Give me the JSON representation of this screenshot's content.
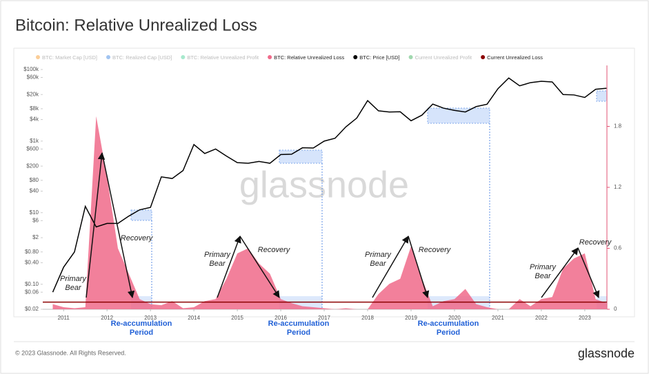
{
  "chart_data": {
    "type": "line",
    "title": "Bitcoin: Relative Unrealized Loss",
    "watermark": "glassnode",
    "copyright": "© 2023 Glassnode. All Rights Reserved.",
    "logo": "glassnode",
    "x": [
      2010.75,
      2011,
      2011.25,
      2011.5,
      2011.75,
      2012,
      2012.25,
      2012.5,
      2012.75,
      2013,
      2013.25,
      2013.5,
      2013.75,
      2014,
      2014.25,
      2014.5,
      2014.75,
      2015,
      2015.25,
      2015.5,
      2015.75,
      2016,
      2016.25,
      2016.5,
      2016.75,
      2017,
      2017.25,
      2017.5,
      2017.75,
      2018,
      2018.25,
      2018.5,
      2018.75,
      2019,
      2019.25,
      2019.5,
      2019.75,
      2020,
      2020.25,
      2020.5,
      2020.75,
      2021,
      2021.25,
      2021.5,
      2021.75,
      2022,
      2022.25,
      2022.5,
      2022.75,
      2023,
      2023.25,
      2023.5
    ],
    "xlim": [
      2010.52,
      2023.51
    ],
    "xticks": [
      2011,
      2012,
      2013,
      2014,
      2015,
      2016,
      2017,
      2018,
      2019,
      2020,
      2021,
      2022,
      2023
    ],
    "log_scale": true,
    "ylim": [
      0.02,
      130000
    ],
    "yticks": [
      {
        "value": 0.02,
        "label": "$0.02"
      },
      {
        "value": 0.06,
        "label": "$0.06"
      },
      {
        "value": 0.1,
        "label": "$0.10"
      },
      {
        "value": 0.4,
        "label": "$0.40"
      },
      {
        "value": 0.8,
        "label": "$0.80"
      },
      {
        "value": 2,
        "label": "$2"
      },
      {
        "value": 6,
        "label": "$6"
      },
      {
        "value": 10,
        "label": "$10"
      },
      {
        "value": 40,
        "label": "$40"
      },
      {
        "value": 80,
        "label": "$80"
      },
      {
        "value": 200,
        "label": "$200"
      },
      {
        "value": 600,
        "label": "$600"
      },
      {
        "value": 1000,
        "label": "$1k"
      },
      {
        "value": 4000,
        "label": "$4k"
      },
      {
        "value": 8000,
        "label": "$8k"
      },
      {
        "value": 20000,
        "label": "$20k"
      },
      {
        "value": 60000,
        "label": "$60k"
      },
      {
        "value": 100000,
        "label": "$100k"
      }
    ],
    "y2lim": [
      0,
      2.4
    ],
    "y2ticks": [
      0,
      0.6,
      1.2,
      1.8
    ],
    "series": [
      {
        "name": "BTC: Market Cap [USD]",
        "color": "#f7931a",
        "visible": false
      },
      {
        "name": "BTC: Realized Cap [USD]",
        "color": "#2e7de1",
        "visible": false
      },
      {
        "name": "BTC: Relative Unrealized Profit",
        "color": "#3ccf91",
        "visible": false
      },
      {
        "name": "BTC: Relative Unrealized Loss",
        "color": "#f06a8a",
        "visible": true,
        "axis": "y2",
        "style": "area",
        "values": [
          0.05,
          0.02,
          0.01,
          0.02,
          1.9,
          1.3,
          0.6,
          0.35,
          0.1,
          0.05,
          0.04,
          0.08,
          0.01,
          0.02,
          0.08,
          0.1,
          0.3,
          0.55,
          0.6,
          0.45,
          0.35,
          0.1,
          0.06,
          0.03,
          0.02,
          0.01,
          0,
          0.01,
          0,
          0,
          0.15,
          0.25,
          0.3,
          0.62,
          0.3,
          0.03,
          0.08,
          0.1,
          0.2,
          0.05,
          0.02,
          0,
          0,
          0.1,
          0.03,
          0.1,
          0.12,
          0.4,
          0.5,
          0.55,
          0.1,
          0.06
        ]
      },
      {
        "name": "BTC: Price [USD]",
        "color": "#000000",
        "visible": true,
        "axis": "y",
        "style": "line",
        "values": [
          0.06,
          0.3,
          0.8,
          15,
          4,
          5,
          5,
          8,
          12,
          14,
          100,
          90,
          150,
          800,
          450,
          600,
          380,
          250,
          240,
          270,
          240,
          420,
          430,
          650,
          640,
          1000,
          1200,
          2500,
          4400,
          13500,
          7000,
          6500,
          6600,
          3700,
          5300,
          10800,
          8300,
          7200,
          6500,
          9200,
          10700,
          29000,
          58000,
          35000,
          43000,
          47000,
          45000,
          20000,
          19500,
          16600,
          28000,
          30000
        ]
      },
      {
        "name": "Current Unrealized Profit",
        "color": "#2ea84d",
        "visible": false
      },
      {
        "name": "Current Unrealized Loss",
        "color": "#8b0000",
        "visible": true,
        "axis": "y2",
        "style": "hline",
        "value": 0.07
      }
    ],
    "annotations": [
      {
        "lines": [
          "Primary",
          "Bear"
        ]
      },
      {
        "lines": [
          "Recovery"
        ]
      },
      {
        "lines": [
          "Primary",
          "Bear"
        ]
      },
      {
        "lines": [
          "Recovery"
        ]
      },
      {
        "lines": [
          "Primary",
          "Bear"
        ]
      },
      {
        "lines": [
          "Recovery"
        ]
      },
      {
        "lines": [
          "Primary",
          "Bear"
        ]
      },
      {
        "lines": [
          "Recovery"
        ]
      },
      {
        "lines": [
          "Re-accumulation",
          "Period"
        ]
      },
      {
        "lines": [
          "Re-accumulation",
          "Period"
        ]
      },
      {
        "lines": [
          "Re-accumulation",
          "Period"
        ]
      }
    ]
  }
}
